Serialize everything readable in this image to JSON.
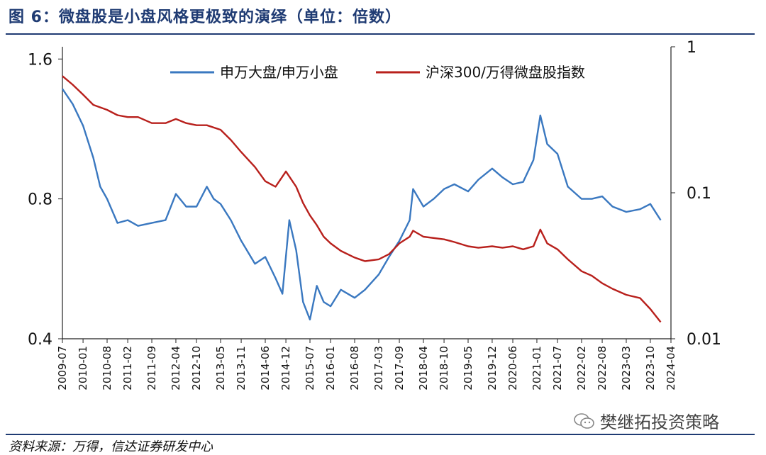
{
  "header": {
    "title": "图 6：微盘股是小盘风格更极致的演绎（单位：倍数）"
  },
  "footer": {
    "source": "资料来源：万得，信达证券研发中心",
    "watermark": "樊继拓投资策略"
  },
  "colors": {
    "blue": "#3a78c0",
    "red": "#b8201c",
    "title": "#1f3b73"
  },
  "chart_data": {
    "type": "line",
    "title": "微盘股是小盘风格更极致的演绎（单位：倍数）",
    "x_start": "2009-07",
    "x_end": "2024-04",
    "x_ticks": [
      "2009-07",
      "2010-01",
      "2010-08",
      "2011-02",
      "2011-09",
      "2012-04",
      "2012-10",
      "2013-05",
      "2013-11",
      "2014-06",
      "2014-12",
      "2015-07",
      "2016-01",
      "2016-08",
      "2017-03",
      "2017-09",
      "2018-04",
      "2018-10",
      "2019-05",
      "2019-12",
      "2020-06",
      "2021-01",
      "2021-07",
      "2022-02",
      "2022-08",
      "2023-03",
      "2023-10",
      "2024-04"
    ],
    "y_left": {
      "ticks": [
        "1.6",
        "0.8",
        "0.4"
      ],
      "range": [
        0.4,
        1.7
      ],
      "scale": "log2"
    },
    "y_right": {
      "ticks": [
        "1",
        "0.1",
        "0.01"
      ],
      "range": [
        0.01,
        1
      ],
      "scale": "log10"
    },
    "legend": {
      "position": "top"
    },
    "series": [
      {
        "name": "申万大盘/申万小盘",
        "axis": "left",
        "color": "#3a78c0",
        "points": [
          [
            "2009-07",
            1.38
          ],
          [
            "2009-10",
            1.28
          ],
          [
            "2010-01",
            1.15
          ],
          [
            "2010-04",
            0.98
          ],
          [
            "2010-06",
            0.85
          ],
          [
            "2010-08",
            0.8
          ],
          [
            "2010-11",
            0.71
          ],
          [
            "2011-02",
            0.72
          ],
          [
            "2011-05",
            0.7
          ],
          [
            "2011-09",
            0.71
          ],
          [
            "2012-01",
            0.72
          ],
          [
            "2012-04",
            0.82
          ],
          [
            "2012-07",
            0.77
          ],
          [
            "2012-10",
            0.77
          ],
          [
            "2013-01",
            0.85
          ],
          [
            "2013-03",
            0.8
          ],
          [
            "2013-05",
            0.78
          ],
          [
            "2013-08",
            0.72
          ],
          [
            "2013-11",
            0.65
          ],
          [
            "2014-03",
            0.58
          ],
          [
            "2014-06",
            0.6
          ],
          [
            "2014-09",
            0.54
          ],
          [
            "2014-11",
            0.5
          ],
          [
            "2015-01",
            0.72
          ],
          [
            "2015-03",
            0.62
          ],
          [
            "2015-05",
            0.48
          ],
          [
            "2015-07",
            0.44
          ],
          [
            "2015-09",
            0.52
          ],
          [
            "2015-11",
            0.48
          ],
          [
            "2016-01",
            0.47
          ],
          [
            "2016-04",
            0.51
          ],
          [
            "2016-08",
            0.49
          ],
          [
            "2016-11",
            0.51
          ],
          [
            "2017-03",
            0.55
          ],
          [
            "2017-06",
            0.6
          ],
          [
            "2017-09",
            0.65
          ],
          [
            "2017-12",
            0.72
          ],
          [
            "2018-01",
            0.84
          ],
          [
            "2018-04",
            0.77
          ],
          [
            "2018-07",
            0.8
          ],
          [
            "2018-10",
            0.84
          ],
          [
            "2019-01",
            0.86
          ],
          [
            "2019-05",
            0.83
          ],
          [
            "2019-08",
            0.88
          ],
          [
            "2019-12",
            0.93
          ],
          [
            "2020-03",
            0.89
          ],
          [
            "2020-06",
            0.86
          ],
          [
            "2020-09",
            0.87
          ],
          [
            "2020-12",
            0.97
          ],
          [
            "2021-02",
            1.21
          ],
          [
            "2021-04",
            1.05
          ],
          [
            "2021-07",
            1.0
          ],
          [
            "2021-10",
            0.85
          ],
          [
            "2022-02",
            0.8
          ],
          [
            "2022-05",
            0.8
          ],
          [
            "2022-08",
            0.81
          ],
          [
            "2022-11",
            0.77
          ],
          [
            "2023-03",
            0.75
          ],
          [
            "2023-07",
            0.76
          ],
          [
            "2023-10",
            0.78
          ],
          [
            "2024-01",
            0.72
          ]
        ]
      },
      {
        "name": "沪深300/万得微盘股指数",
        "axis": "right",
        "color": "#b8201c",
        "points": [
          [
            "2009-07",
            0.63
          ],
          [
            "2009-10",
            0.55
          ],
          [
            "2010-01",
            0.47
          ],
          [
            "2010-04",
            0.4
          ],
          [
            "2010-08",
            0.37
          ],
          [
            "2010-11",
            0.34
          ],
          [
            "2011-02",
            0.33
          ],
          [
            "2011-05",
            0.33
          ],
          [
            "2011-09",
            0.3
          ],
          [
            "2012-01",
            0.3
          ],
          [
            "2012-04",
            0.32
          ],
          [
            "2012-07",
            0.3
          ],
          [
            "2012-10",
            0.29
          ],
          [
            "2013-01",
            0.29
          ],
          [
            "2013-05",
            0.27
          ],
          [
            "2013-08",
            0.23
          ],
          [
            "2013-11",
            0.19
          ],
          [
            "2014-03",
            0.15
          ],
          [
            "2014-06",
            0.12
          ],
          [
            "2014-09",
            0.11
          ],
          [
            "2014-12",
            0.14
          ],
          [
            "2015-03",
            0.11
          ],
          [
            "2015-05",
            0.085
          ],
          [
            "2015-07",
            0.07
          ],
          [
            "2015-09",
            0.06
          ],
          [
            "2015-11",
            0.05
          ],
          [
            "2016-01",
            0.045
          ],
          [
            "2016-04",
            0.04
          ],
          [
            "2016-08",
            0.036
          ],
          [
            "2016-11",
            0.034
          ],
          [
            "2017-03",
            0.035
          ],
          [
            "2017-06",
            0.038
          ],
          [
            "2017-09",
            0.045
          ],
          [
            "2017-12",
            0.05
          ],
          [
            "2018-01",
            0.055
          ],
          [
            "2018-04",
            0.05
          ],
          [
            "2018-10",
            0.048
          ],
          [
            "2019-01",
            0.046
          ],
          [
            "2019-05",
            0.043
          ],
          [
            "2019-08",
            0.042
          ],
          [
            "2019-12",
            0.043
          ],
          [
            "2020-03",
            0.042
          ],
          [
            "2020-06",
            0.043
          ],
          [
            "2020-09",
            0.041
          ],
          [
            "2020-12",
            0.043
          ],
          [
            "2021-02",
            0.056
          ],
          [
            "2021-04",
            0.045
          ],
          [
            "2021-07",
            0.041
          ],
          [
            "2021-10",
            0.035
          ],
          [
            "2022-02",
            0.029
          ],
          [
            "2022-05",
            0.027
          ],
          [
            "2022-08",
            0.024
          ],
          [
            "2022-11",
            0.022
          ],
          [
            "2023-03",
            0.02
          ],
          [
            "2023-07",
            0.019
          ],
          [
            "2023-10",
            0.016
          ],
          [
            "2024-01",
            0.013
          ]
        ]
      }
    ]
  }
}
